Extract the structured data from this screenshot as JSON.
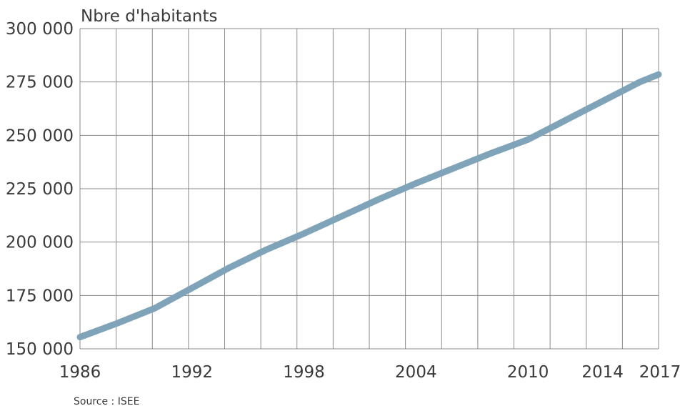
{
  "chart_data": {
    "type": "line",
    "ylabel": "Nbre d'habitants",
    "source": "Source : ISEE",
    "x_tick_labels": [
      "1986",
      "1992",
      "1998",
      "2004",
      "2010",
      "2014",
      "2017"
    ],
    "y_tick_labels": [
      "300 000",
      "275 000",
      "250 000",
      "225 000",
      "200 000",
      "175 000",
      "150 000"
    ],
    "y_ticks": [
      300000,
      275000,
      250000,
      225000,
      200000,
      175000,
      150000
    ],
    "ylim": [
      150000,
      300000
    ],
    "xlim": [
      1986,
      2017
    ],
    "grid": true,
    "line_color": "#7fa3b8",
    "grid_color": "#8a8a8a",
    "series": [
      {
        "x": [
          1986,
          1988,
          1990,
          1992,
          1994,
          1996,
          1998,
          2000,
          2002,
          2004,
          2006,
          2008,
          2010,
          2012,
          2014,
          2016,
          2017
        ],
        "values": [
          155500,
          162000,
          169000,
          178500,
          188000,
          196500,
          204000,
          212000,
          220000,
          227500,
          234500,
          241500,
          248000,
          257000,
          266000,
          275000,
          278500
        ]
      }
    ]
  }
}
